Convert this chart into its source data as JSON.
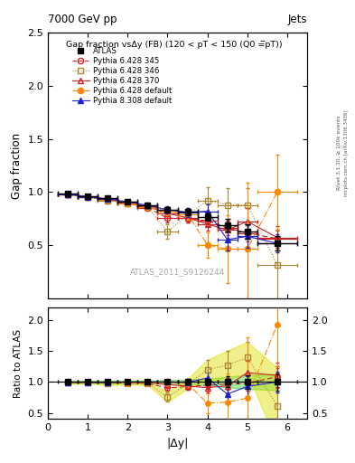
{
  "title_left": "7000 GeV pp",
  "title_right": "Jets",
  "panel1_title": "Gap fraction vsΔy (FB) (120 < pT < 150 (Q0 =̅pT))",
  "panel1_ylabel": "Gap fraction",
  "panel2_ylabel": "Ratio to ATLAS",
  "xlabel": "|Δy|",
  "watermark": "ATLAS_2011_S9126244",
  "right_label_top": "Rivet 3.1.10, ≥ 100k events",
  "right_label_bot": "mcplots.cern.ch [arXiv:1306.3436]",
  "atlas_x": [
    0.5,
    1.0,
    1.5,
    2.0,
    2.5,
    3.0,
    3.5,
    4.0,
    4.5,
    5.0,
    5.75
  ],
  "atlas_y": [
    0.985,
    0.96,
    0.945,
    0.91,
    0.875,
    0.835,
    0.815,
    0.77,
    0.69,
    0.63,
    0.52
  ],
  "atlas_yerr": [
    0.02,
    0.02,
    0.02,
    0.02,
    0.02,
    0.025,
    0.03,
    0.04,
    0.06,
    0.07,
    0.07
  ],
  "atlas_xerr": [
    0.25,
    0.25,
    0.25,
    0.25,
    0.25,
    0.25,
    0.25,
    0.25,
    0.25,
    0.25,
    0.5
  ],
  "p345_x": [
    0.5,
    1.0,
    1.5,
    2.0,
    2.5,
    3.0,
    3.5,
    4.0,
    4.5,
    5.0,
    5.75
  ],
  "p345_y": [
    0.975,
    0.955,
    0.93,
    0.895,
    0.855,
    0.755,
    0.755,
    0.73,
    0.665,
    0.615,
    0.565
  ],
  "p345_yerr": [
    0.02,
    0.02,
    0.02,
    0.02,
    0.025,
    0.04,
    0.04,
    0.05,
    0.065,
    0.075,
    0.085
  ],
  "p346_x": [
    0.5,
    1.0,
    1.5,
    2.0,
    2.5,
    3.0,
    3.5,
    4.0,
    4.5,
    5.0,
    5.75
  ],
  "p346_y": [
    0.975,
    0.955,
    0.92,
    0.895,
    0.86,
    0.63,
    0.79,
    0.92,
    0.88,
    0.88,
    0.32
  ],
  "p346_yerr": [
    0.02,
    0.02,
    0.025,
    0.025,
    0.03,
    0.065,
    0.065,
    0.13,
    0.16,
    0.16,
    0.32
  ],
  "p370_x": [
    0.5,
    1.0,
    1.5,
    2.0,
    2.5,
    3.0,
    3.5,
    4.0,
    4.5,
    5.0,
    5.75
  ],
  "p370_y": [
    0.98,
    0.96,
    0.935,
    0.9,
    0.865,
    0.8,
    0.76,
    0.7,
    0.645,
    0.725,
    0.575
  ],
  "p370_yerr": [
    0.02,
    0.02,
    0.02,
    0.02,
    0.025,
    0.04,
    0.045,
    0.065,
    0.085,
    0.125,
    0.105
  ],
  "pdef_x": [
    0.5,
    1.0,
    1.5,
    2.0,
    2.5,
    3.0,
    3.5,
    4.0,
    4.5,
    5.0,
    5.75
  ],
  "pdef_y": [
    0.975,
    0.955,
    0.93,
    0.895,
    0.86,
    0.82,
    0.795,
    0.505,
    0.465,
    0.465,
    1.0
  ],
  "pdef_yerr": [
    0.02,
    0.02,
    0.02,
    0.02,
    0.025,
    0.04,
    0.05,
    0.12,
    0.32,
    0.62,
    0.35
  ],
  "p8def_x": [
    0.5,
    1.0,
    1.5,
    2.0,
    2.5,
    3.0,
    3.5,
    4.0,
    4.5,
    5.0,
    5.75
  ],
  "p8def_y": [
    0.98,
    0.955,
    0.935,
    0.91,
    0.875,
    0.835,
    0.81,
    0.82,
    0.555,
    0.585,
    0.52
  ],
  "p8def_yerr": [
    0.02,
    0.02,
    0.02,
    0.02,
    0.025,
    0.035,
    0.04,
    0.065,
    0.105,
    0.105,
    0.085
  ],
  "color_p345": "#cc2222",
  "color_p346": "#aa8833",
  "color_p370": "#cc2222",
  "color_pdef": "#ff8800",
  "color_p8def": "#2222cc",
  "atlas_band_color": "#33cc33",
  "atlas_band_alpha": 0.45,
  "ref_band_color": "#dddd00",
  "ref_band_alpha": 0.45,
  "panel1_ylim": [
    0.0,
    2.5
  ],
  "panel2_ylim": [
    0.4,
    2.2
  ],
  "xlim": [
    0.0,
    6.5
  ]
}
